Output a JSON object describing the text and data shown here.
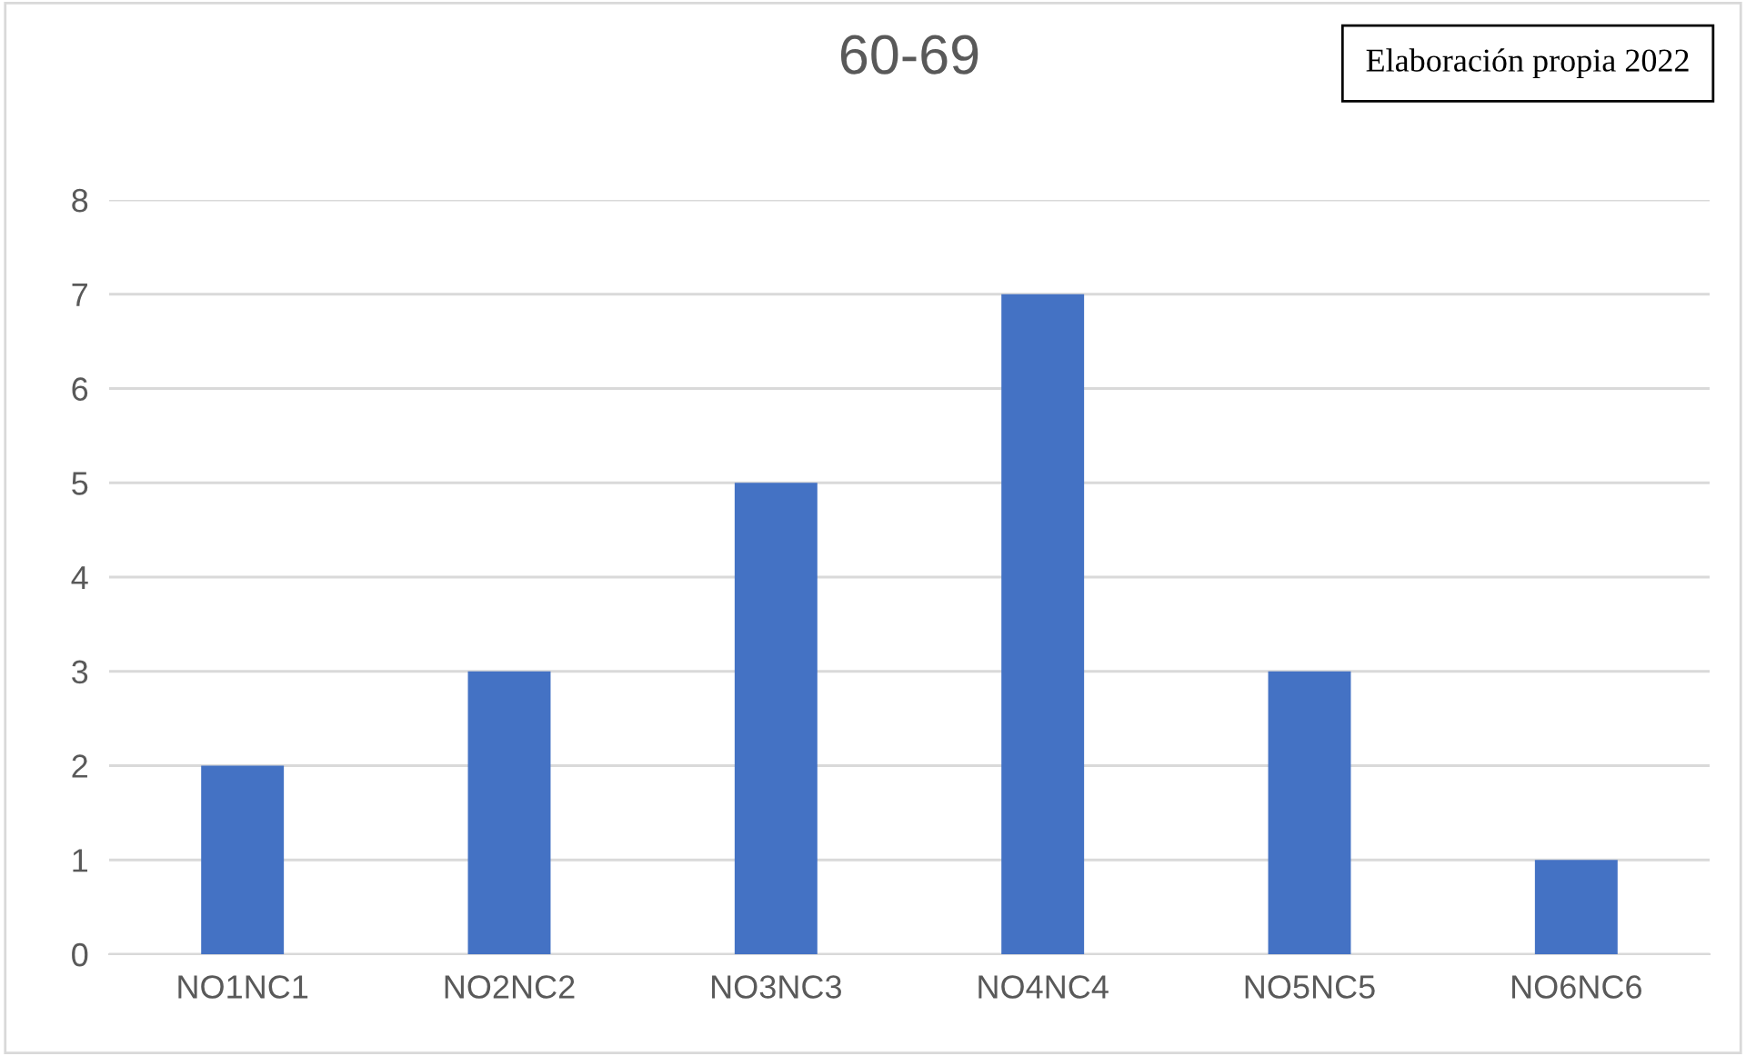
{
  "chart_data": {
    "type": "bar",
    "title": "60-69",
    "categories": [
      "NO1NC1",
      "NO2NC2",
      "NO3NC3",
      "NO4NC4",
      "NO5NC5",
      "NO6NC6"
    ],
    "values": [
      2,
      3,
      5,
      7,
      3,
      1
    ],
    "color": "#4472c4",
    "ylim": [
      0,
      8
    ],
    "yticks": [
      0,
      1,
      2,
      3,
      4,
      5,
      6,
      7,
      8
    ],
    "grid": "y",
    "annotations": [
      "Elaboración propia 2022"
    ]
  }
}
